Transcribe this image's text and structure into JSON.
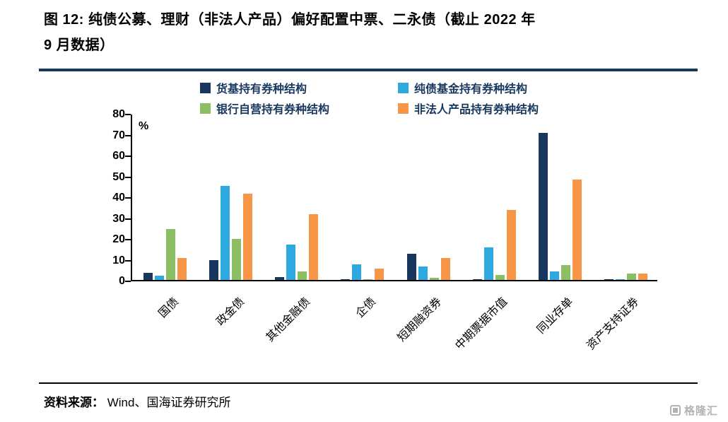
{
  "title": {
    "line1": "图 12:  纯债公募、理财（非法人产品）偏好配置中票、二永债（截止 2022 年",
    "line2": "9 月数据）"
  },
  "footer": {
    "source_label": "资料来源：",
    "source_text": "Wind、国海证券研究所"
  },
  "logo": {
    "text": "格隆汇"
  },
  "colors": {
    "title_rule": "#17375E",
    "legend_text": "#17375E",
    "axis": "#000000"
  },
  "chart_data": {
    "type": "bar",
    "title": "纯债公募、理财（非法人产品）偏好配置中票、二永债（截止 2022 年 9 月数据）",
    "xlabel": "",
    "ylabel": "%",
    "ylim": [
      0,
      80
    ],
    "ytick_step": 10,
    "grid": false,
    "legend_position": "top",
    "categories": [
      "国债",
      "政金债",
      "其他金融债",
      "企债",
      "短期融资券",
      "中期票据市值",
      "同业存单",
      "资产支持证券"
    ],
    "series": [
      {
        "name": "货基持有券种结构",
        "color": "#17375E",
        "values": [
          3.5,
          9.5,
          1.5,
          0.5,
          12.5,
          0.5,
          70.5,
          0.5
        ]
      },
      {
        "name": "纯债基金持有券种结构",
        "color": "#2EA9DF",
        "values": [
          2,
          45,
          17,
          7.5,
          6.5,
          15.5,
          4,
          0.5
        ]
      },
      {
        "name": "银行自营持有券种结构",
        "color": "#8CBE64",
        "values": [
          24.5,
          19.5,
          4,
          0.5,
          1,
          2.5,
          7,
          3
        ]
      },
      {
        "name": "非法人产品持有券种结构",
        "color": "#F79646",
        "values": [
          10.5,
          41.5,
          31.5,
          5.5,
          10.5,
          33.5,
          48,
          3
        ]
      }
    ]
  }
}
